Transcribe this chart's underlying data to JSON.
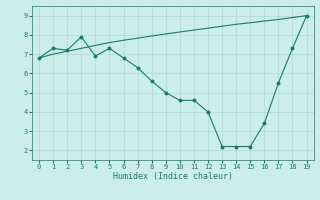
{
  "x": [
    0,
    1,
    2,
    3,
    4,
    5,
    6,
    7,
    8,
    9,
    10,
    11,
    12,
    13,
    14,
    15,
    16,
    17,
    18,
    19
  ],
  "line1": [
    6.8,
    7.0,
    7.15,
    7.3,
    7.45,
    7.6,
    7.72,
    7.83,
    7.94,
    8.05,
    8.15,
    8.25,
    8.35,
    8.45,
    8.55,
    8.63,
    8.72,
    8.8,
    8.9,
    9.0
  ],
  "line2": [
    6.8,
    7.3,
    7.2,
    7.9,
    6.9,
    7.3,
    6.8,
    6.3,
    5.6,
    5.0,
    4.6,
    4.6,
    4.0,
    2.2,
    2.2,
    2.2,
    3.4,
    5.5,
    7.3,
    9.0
  ],
  "line_color": "#1a7a6e",
  "bg_color": "#cceee8",
  "grid_color": "#b0d8d2",
  "xlabel": "Humidex (Indice chaleur)",
  "ylim": [
    1.5,
    9.5
  ],
  "xlim": [
    -0.5,
    19.5
  ],
  "yticks": [
    2,
    3,
    4,
    5,
    6,
    7,
    8,
    9
  ],
  "xticks": [
    0,
    1,
    2,
    3,
    4,
    5,
    6,
    7,
    8,
    9,
    10,
    11,
    12,
    13,
    14,
    15,
    16,
    17,
    18,
    19
  ],
  "label_fontsize": 5.0,
  "xlabel_fontsize": 6.0
}
